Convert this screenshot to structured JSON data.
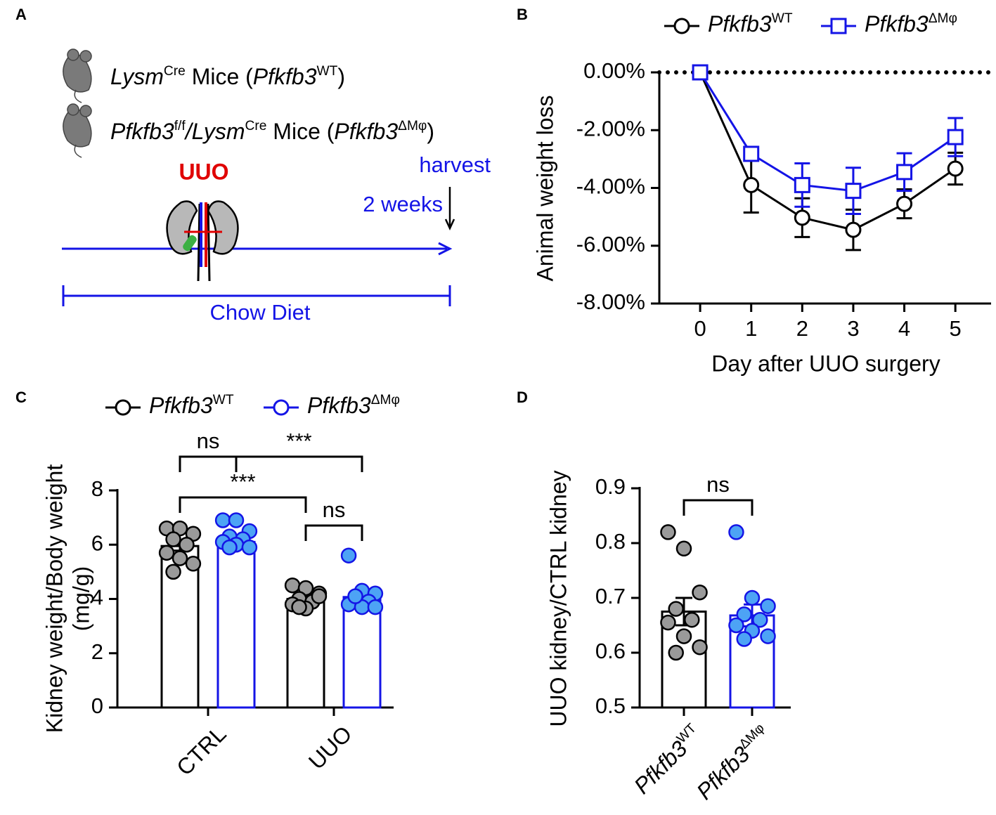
{
  "panel_a": {
    "panel_label": "A",
    "lines": [
      [
        {
          "text": "Lysm",
          "style": "italic"
        },
        {
          "text": "Cre",
          "style": "sup"
        },
        {
          "text": " Mice (",
          "style": "normal"
        },
        {
          "text": "Pfkfb3",
          "style": "italic"
        },
        {
          "text": "WT",
          "style": "sup"
        },
        {
          "text": ")",
          "style": "normal"
        }
      ],
      [
        {
          "text": "Pfkfb3",
          "style": "italic"
        },
        {
          "text": "f/f",
          "style": "sup"
        },
        {
          "text": "/Lysm",
          "style": "italic"
        },
        {
          "text": "Cre",
          "style": "sup"
        },
        {
          "text": " Mice (",
          "style": "normal"
        },
        {
          "text": "Pfkfb3",
          "style": "italic"
        },
        {
          "text": "ΔMφ",
          "style": "sup"
        },
        {
          "text": ")",
          "style": "normal"
        }
      ]
    ],
    "procedure": "UUO",
    "harvest": "harvest",
    "duration": "2 weeks",
    "diet": "Chow Diet"
  },
  "chart_data": [
    {
      "panel_label": "B",
      "type": "line",
      "x": [
        0,
        1,
        2,
        3,
        4,
        5
      ],
      "xlim": [
        -0.8,
        5.7
      ],
      "xticks": [
        0,
        1,
        2,
        3,
        4,
        5
      ],
      "ylim": [
        -8,
        0
      ],
      "yticks": [
        {
          "value": 0,
          "label": "0.00%"
        },
        {
          "value": -2,
          "label": "-2.00%"
        },
        {
          "value": -4,
          "label": "-4.00%"
        },
        {
          "value": -6,
          "label": "-6.00%"
        },
        {
          "value": -8,
          "label": "-8.00%"
        }
      ],
      "xlabel": "Day after UUO surgery",
      "ylabel": "Animal weight loss",
      "reference_line": 0,
      "reference_style": "dotted",
      "legend": "top",
      "series": [
        {
          "name": "Pfkfb3",
          "name_sup": "WT",
          "color": "#000000",
          "marker": "circle",
          "values": [
            0,
            -3.9,
            -5.03,
            -5.45,
            -4.55,
            -3.33
          ],
          "errors": [
            0,
            0.95,
            0.67,
            0.7,
            0.5,
            0.55
          ]
        },
        {
          "name": "Pfkfb3",
          "name_sup": "ΔMφ",
          "color": "#1414e6",
          "marker": "square",
          "values": [
            0,
            -2.82,
            -3.9,
            -4.1,
            -3.45,
            -2.24
          ],
          "errors": [
            0,
            0.1,
            0.75,
            0.8,
            0.65,
            0.66
          ]
        }
      ]
    },
    {
      "panel_label": "C",
      "type": "bar",
      "categories": [
        "CTRL",
        "UUO"
      ],
      "ylim": [
        0,
        8
      ],
      "yticks": [
        0,
        2,
        4,
        6,
        8
      ],
      "ylabel": "Kidney weight/Body weight",
      "ylabel_unit": "(mg/g)",
      "legend": "top",
      "series": [
        {
          "name": "Pfkfb3",
          "name_sup": "WT",
          "color": "#000000",
          "marker": "circle",
          "point_color": "#9a9a9a",
          "values": [
            5.95,
            4.0
          ],
          "errors": [
            0.17,
            0.1
          ],
          "points": [
            [
              6.6,
              6.6,
              6.4,
              6.2,
              6.0,
              5.7,
              5.5,
              5.3,
              5.0
            ],
            [
              4.5,
              4.4,
              4.2,
              4.0,
              3.9,
              3.8,
              3.65,
              4.1,
              3.7
            ]
          ]
        },
        {
          "name": "Pfkfb3",
          "name_sup": "ΔMφ",
          "color": "#1414e6",
          "marker": "circle",
          "point_color": "#4da3f5",
          "values": [
            6.1,
            4.07
          ],
          "errors": [
            0.15,
            0.13
          ],
          "points": [
            [
              6.9,
              6.9,
              6.5,
              6.3,
              6.2,
              6.1,
              6.0,
              5.9,
              5.9
            ],
            [
              5.6,
              4.3,
              4.2,
              4.0,
              3.9,
              3.8,
              3.7,
              3.7,
              4.1
            ]
          ]
        }
      ],
      "annotations": [
        {
          "text": "ns",
          "from": {
            "category": 0,
            "series": 0
          },
          "to": {
            "category": 0,
            "series": 1
          }
        },
        {
          "text": "***",
          "from": {
            "category": 0,
            "series": 1
          },
          "to": {
            "category": 1,
            "series": 1
          }
        },
        {
          "text": "***",
          "from": {
            "category": 0,
            "series": 0
          },
          "to": {
            "category": 1,
            "series": 0
          }
        },
        {
          "text": "ns",
          "from": {
            "category": 1,
            "series": 0
          },
          "to": {
            "category": 1,
            "series": 1
          }
        }
      ]
    },
    {
      "panel_label": "D",
      "type": "bar",
      "categories": [
        "Pfkfb3",
        "Pfkfb3"
      ],
      "category_superscripts": [
        "WT",
        "ΔMφ"
      ],
      "ylim": [
        0.5,
        0.9
      ],
      "yticks": [
        0.5,
        0.6,
        0.7,
        0.8,
        0.9
      ],
      "ylabel": "UUO kidney/CTRL kidney",
      "values": [
        0.675,
        0.668
      ],
      "errors": [
        0.025,
        0.02
      ],
      "colors": [
        "#000000",
        "#1414e6"
      ],
      "point_colors": [
        "#9a9a9a",
        "#4da3f5"
      ],
      "points": [
        [
          0.82,
          0.79,
          0.71,
          0.68,
          0.66,
          0.655,
          0.63,
          0.61,
          0.6
        ],
        [
          0.82,
          0.7,
          0.685,
          0.67,
          0.66,
          0.65,
          0.64,
          0.63,
          0.625
        ]
      ],
      "annotations": [
        {
          "text": "ns",
          "from": {
            "category": 0
          },
          "to": {
            "category": 1
          }
        }
      ]
    }
  ]
}
